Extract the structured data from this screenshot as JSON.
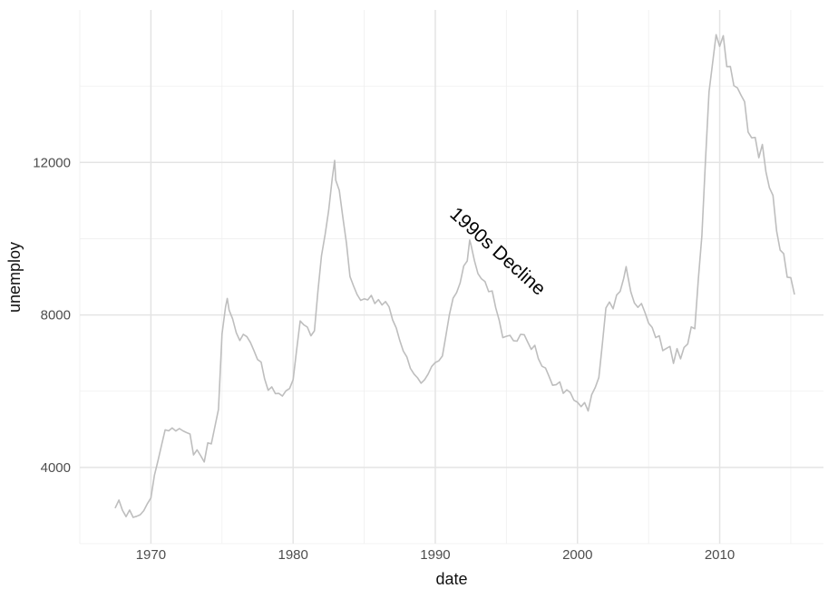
{
  "chart_data": {
    "type": "line",
    "title": "",
    "xlabel": "date",
    "ylabel": "unemploy",
    "legend_position": "none",
    "grid": true,
    "annotation": {
      "text": "1990s Decline",
      "x": 1994.1,
      "y": 9550,
      "angle_deg": 42
    },
    "x_axis": {
      "range": [
        1965,
        2017.3
      ],
      "major_ticks": [
        1970,
        1980,
        1990,
        2000,
        2010
      ],
      "tick_labels": [
        "1970",
        "1980",
        "1990",
        "2000",
        "2010"
      ],
      "minor_ticks": [
        1965,
        1975,
        1985,
        1995,
        2005,
        2015
      ]
    },
    "y_axis": {
      "range": [
        2000,
        16000
      ],
      "major_ticks": [
        4000,
        8000,
        12000
      ],
      "tick_labels": [
        "4000",
        "8000",
        "12000"
      ],
      "minor_ticks": [
        2000,
        6000,
        10000,
        14000
      ]
    },
    "series": [
      {
        "name": "unemploy",
        "color": "#BEBEBE",
        "points": [
          [
            1967.5,
            2944
          ],
          [
            1967.75,
            3143
          ],
          [
            1968,
            2878
          ],
          [
            1968.25,
            2709
          ],
          [
            1968.5,
            2883
          ],
          [
            1968.75,
            2689
          ],
          [
            1969,
            2718
          ],
          [
            1969.25,
            2758
          ],
          [
            1969.5,
            2868
          ],
          [
            1969.75,
            3049
          ],
          [
            1970,
            3201
          ],
          [
            1970.25,
            3797
          ],
          [
            1970.5,
            4175
          ],
          [
            1970.75,
            4591
          ],
          [
            1971,
            4986
          ],
          [
            1971.25,
            4959
          ],
          [
            1971.5,
            5035
          ],
          [
            1971.75,
            4954
          ],
          [
            1972,
            5019
          ],
          [
            1972.25,
            4959
          ],
          [
            1972.5,
            4913
          ],
          [
            1972.75,
            4875
          ],
          [
            1973,
            4326
          ],
          [
            1973.25,
            4459
          ],
          [
            1973.5,
            4305
          ],
          [
            1973.75,
            4144
          ],
          [
            1974,
            4644
          ],
          [
            1974.25,
            4618
          ],
          [
            1974.5,
            5063
          ],
          [
            1974.75,
            5523
          ],
          [
            1975,
            7501
          ],
          [
            1975.25,
            8210
          ],
          [
            1975.37,
            8433
          ],
          [
            1975.5,
            8127
          ],
          [
            1975.75,
            7897
          ],
          [
            1976,
            7534
          ],
          [
            1976.25,
            7330
          ],
          [
            1976.5,
            7490
          ],
          [
            1976.75,
            7430
          ],
          [
            1977,
            7280
          ],
          [
            1977.25,
            7059
          ],
          [
            1977.5,
            6829
          ],
          [
            1977.75,
            6763
          ],
          [
            1978,
            6318
          ],
          [
            1978.25,
            6023
          ],
          [
            1978.5,
            6111
          ],
          [
            1978.75,
            5937
          ],
          [
            1979,
            5942
          ],
          [
            1979.25,
            5871
          ],
          [
            1979.5,
            6010
          ],
          [
            1979.75,
            6069
          ],
          [
            1980,
            6300
          ],
          [
            1980.25,
            7087
          ],
          [
            1980.5,
            7842
          ],
          [
            1980.75,
            7742
          ],
          [
            1981,
            7681
          ],
          [
            1981.25,
            7453
          ],
          [
            1981.5,
            7584
          ],
          [
            1981.75,
            8635
          ],
          [
            1982,
            9556
          ],
          [
            1982.25,
            10111
          ],
          [
            1982.5,
            10740
          ],
          [
            1982.75,
            11574
          ],
          [
            1982.92,
            12051
          ],
          [
            1983,
            11534
          ],
          [
            1983.25,
            11268
          ],
          [
            1983.5,
            10548
          ],
          [
            1983.75,
            9887
          ],
          [
            1984,
            9008
          ],
          [
            1984.25,
            8762
          ],
          [
            1984.5,
            8537
          ],
          [
            1984.75,
            8381
          ],
          [
            1985,
            8423
          ],
          [
            1985.25,
            8395
          ],
          [
            1985.5,
            8513
          ],
          [
            1985.75,
            8298
          ],
          [
            1986,
            8400
          ],
          [
            1986.25,
            8260
          ],
          [
            1986.5,
            8350
          ],
          [
            1986.75,
            8210
          ],
          [
            1987,
            7870
          ],
          [
            1987.25,
            7660
          ],
          [
            1987.5,
            7330
          ],
          [
            1987.75,
            7050
          ],
          [
            1988,
            6900
          ],
          [
            1988.25,
            6600
          ],
          [
            1988.5,
            6450
          ],
          [
            1988.75,
            6350
          ],
          [
            1989,
            6210
          ],
          [
            1989.25,
            6300
          ],
          [
            1989.5,
            6450
          ],
          [
            1989.75,
            6650
          ],
          [
            1990,
            6752
          ],
          [
            1990.25,
            6797
          ],
          [
            1990.5,
            6922
          ],
          [
            1990.75,
            7459
          ],
          [
            1991,
            8015
          ],
          [
            1991.25,
            8439
          ],
          [
            1991.5,
            8586
          ],
          [
            1991.75,
            8842
          ],
          [
            1992,
            9283
          ],
          [
            1992.25,
            9415
          ],
          [
            1992.42,
            9965
          ],
          [
            1992.5,
            9851
          ],
          [
            1992.75,
            9425
          ],
          [
            1993,
            9085
          ],
          [
            1993.25,
            8945
          ],
          [
            1993.5,
            8873
          ],
          [
            1993.75,
            8611
          ],
          [
            1994,
            8630
          ],
          [
            1994.25,
            8187
          ],
          [
            1994.5,
            7855
          ],
          [
            1994.75,
            7404
          ],
          [
            1995,
            7441
          ],
          [
            1995.25,
            7465
          ],
          [
            1995.5,
            7321
          ],
          [
            1995.75,
            7312
          ],
          [
            1996,
            7491
          ],
          [
            1996.25,
            7481
          ],
          [
            1996.5,
            7287
          ],
          [
            1996.75,
            7097
          ],
          [
            1997,
            7203
          ],
          [
            1997.25,
            6852
          ],
          [
            1997.5,
            6655
          ],
          [
            1997.75,
            6606
          ],
          [
            1998,
            6388
          ],
          [
            1998.25,
            6156
          ],
          [
            1998.5,
            6170
          ],
          [
            1998.75,
            6243
          ],
          [
            1999,
            5943
          ],
          [
            1999.25,
            6036
          ],
          [
            1999.5,
            5963
          ],
          [
            1999.75,
            5762
          ],
          [
            2000,
            5708
          ],
          [
            2000.25,
            5593
          ],
          [
            2000.5,
            5700
          ],
          [
            2000.75,
            5480
          ],
          [
            2001,
            5908
          ],
          [
            2001.25,
            6101
          ],
          [
            2001.5,
            6358
          ],
          [
            2001.75,
            7244
          ],
          [
            2002,
            8182
          ],
          [
            2002.25,
            8340
          ],
          [
            2002.5,
            8160
          ],
          [
            2002.75,
            8520
          ],
          [
            2003,
            8618
          ],
          [
            2003.25,
            8957
          ],
          [
            2003.42,
            9266
          ],
          [
            2003.5,
            9098
          ],
          [
            2003.75,
            8601
          ],
          [
            2004,
            8312
          ],
          [
            2004.25,
            8198
          ],
          [
            2004.5,
            8298
          ],
          [
            2004.75,
            8061
          ],
          [
            2005,
            7784
          ],
          [
            2005.25,
            7672
          ],
          [
            2005.5,
            7406
          ],
          [
            2005.75,
            7453
          ],
          [
            2006,
            7064
          ],
          [
            2006.25,
            7120
          ],
          [
            2006.5,
            7175
          ],
          [
            2006.75,
            6727
          ],
          [
            2007,
            7116
          ],
          [
            2007.25,
            6850
          ],
          [
            2007.5,
            7149
          ],
          [
            2007.75,
            7237
          ],
          [
            2008,
            7685
          ],
          [
            2008.25,
            7637
          ],
          [
            2008.5,
            8937
          ],
          [
            2008.75,
            10074
          ],
          [
            2009,
            12058
          ],
          [
            2009.25,
            13853
          ],
          [
            2009.5,
            14601
          ],
          [
            2009.75,
            15352
          ],
          [
            2010,
            15046
          ],
          [
            2010.25,
            15325
          ],
          [
            2010.5,
            14512
          ],
          [
            2010.75,
            14516
          ],
          [
            2011,
            14013
          ],
          [
            2011.25,
            13957
          ],
          [
            2011.5,
            13763
          ],
          [
            2011.75,
            13594
          ],
          [
            2012,
            12797
          ],
          [
            2012.25,
            12646
          ],
          [
            2012.5,
            12656
          ],
          [
            2012.75,
            12124
          ],
          [
            2013,
            12471
          ],
          [
            2013.25,
            11760
          ],
          [
            2013.5,
            11335
          ],
          [
            2013.75,
            11136
          ],
          [
            2014,
            10202
          ],
          [
            2014.25,
            9702
          ],
          [
            2014.5,
            9608
          ],
          [
            2014.75,
            8990
          ],
          [
            2015,
            8979
          ],
          [
            2015.25,
            8549
          ]
        ]
      }
    ]
  },
  "style": {
    "background": "#FFFFFF",
    "line_color": "#BEBEBE",
    "grid_major_color": "#E4E4E4",
    "grid_minor_color": "#EFEFEF",
    "tick_label_color": "#4D4D4D",
    "axis_title_color": "#111111",
    "annotation_color": "#000000"
  }
}
